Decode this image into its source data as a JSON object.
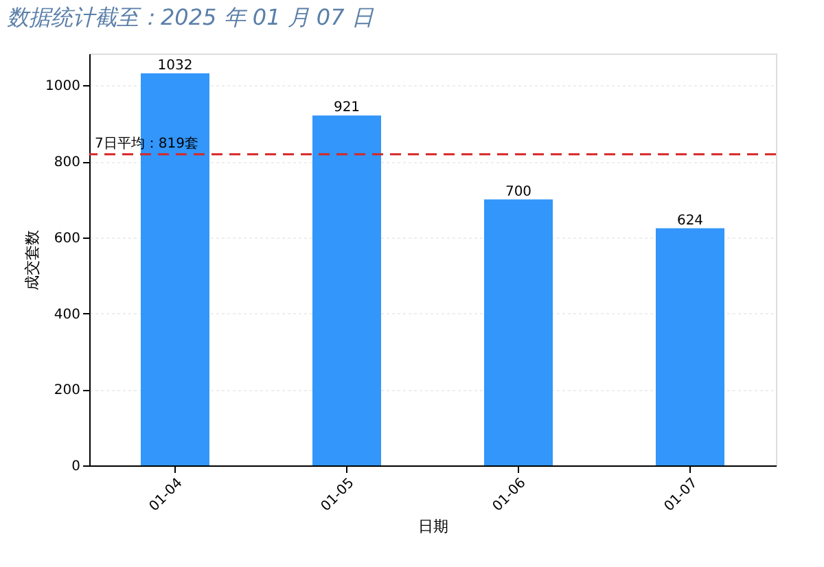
{
  "chart_data": {
    "type": "bar",
    "title": "数据统计截至：2025 年 01 月 07 日",
    "xlabel": "日期",
    "ylabel": "成交套数",
    "categories": [
      "01-04",
      "01-05",
      "01-06",
      "01-07"
    ],
    "values": [
      1032,
      921,
      700,
      624
    ],
    "color": "#3296fa",
    "ylim": [
      0,
      1084
    ],
    "yticks": [
      0,
      200,
      400,
      600,
      800,
      {
        "value": 1000,
        "label": "1000"
      }
    ],
    "grid": "y",
    "data_labels": true,
    "ref_lines": [
      {
        "axis": "y",
        "value": 819,
        "label": "7日平均：819套",
        "color": "#d62728",
        "line_style": "dashed"
      }
    ]
  }
}
